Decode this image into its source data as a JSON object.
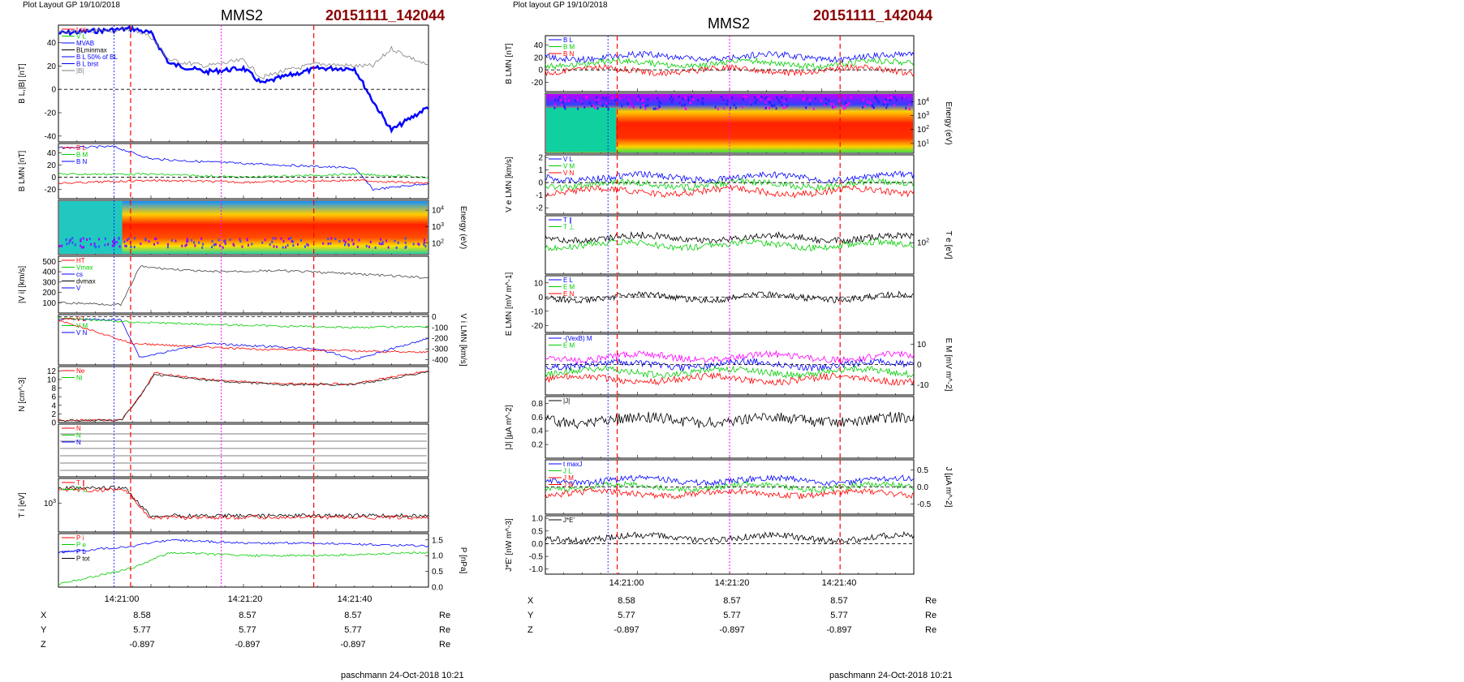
{
  "left": {
    "header": "Plot Layout GP 19/10/2018",
    "spacecraft": "MMS2",
    "event_id": "20151111_142044",
    "footer": "paschmann 24-Oct-2018 10:21",
    "time_labels": [
      "14:21:00",
      "14:21:20",
      "14:21:40"
    ],
    "ephemeris": [
      {
        "coord": "X",
        "values": [
          "8.58",
          "8.57",
          "8.57"
        ],
        "unit": "Re"
      },
      {
        "coord": "Y",
        "values": [
          "5.77",
          "5.77",
          "5.77"
        ],
        "unit": "Re"
      },
      {
        "coord": "Z",
        "values": [
          "-0.897",
          "-0.897",
          "-0.897"
        ],
        "unit": "Re"
      }
    ]
  },
  "right": {
    "header": "Plot layout GP 19/10/2018",
    "spacecraft": "MMS2",
    "event_id": "20151111_142044",
    "footer": "paschmann 24-Oct-2018 10:21",
    "time_labels": [
      "14:21:00",
      "14:21:20",
      "14:21:40"
    ],
    "ephemeris": [
      {
        "coord": "X",
        "values": [
          "8.58",
          "8.57",
          "8.57"
        ],
        "unit": "Re"
      },
      {
        "coord": "Y",
        "values": [
          "5.77",
          "5.77",
          "5.77"
        ],
        "unit": "Re"
      },
      {
        "coord": "Z",
        "values": [
          "-0.897",
          "-0.897",
          "-0.897"
        ],
        "unit": "Re"
      }
    ]
  },
  "colors": {
    "event": "#8b0000",
    "blue": "#0000ff",
    "red": "#ff0000",
    "green": "#00cc00",
    "magenta": "#ff00ff",
    "gray": "#808080",
    "cyan": "#00bfff"
  },
  "chart_data": [
    {
      "type": "line",
      "panel": "left-1",
      "ylabel": "B_L,|B| [nT]",
      "ylim": [
        -45,
        55
      ],
      "yticks": [
        "40",
        "20",
        "0",
        "-20",
        "-40"
      ],
      "legend": [
        "t_cs",
        "V_L",
        "MVAB",
        "BLminmax",
        "B_L 50% of BL",
        "B_L brst",
        "|B|"
      ],
      "series": [
        {
          "name": "B_L",
          "x": [
            0,
            10,
            20,
            25,
            30,
            40,
            50,
            55,
            60,
            70,
            80,
            85,
            90,
            100
          ],
          "y": [
            48,
            50,
            52,
            48,
            22,
            15,
            18,
            5,
            10,
            18,
            18,
            -10,
            -35,
            -15
          ]
        },
        {
          "name": "|B|",
          "x": [
            0,
            10,
            20,
            25,
            30,
            40,
            50,
            55,
            60,
            70,
            80,
            85,
            90,
            100
          ],
          "y": [
            48,
            50,
            52,
            45,
            25,
            20,
            25,
            10,
            15,
            22,
            20,
            20,
            35,
            20
          ]
        }
      ]
    },
    {
      "type": "line",
      "panel": "left-2",
      "ylabel": "B_LMN [nT]",
      "ylim": [
        -35,
        55
      ],
      "yticks": [
        "40",
        "20",
        "0",
        "-20"
      ],
      "legend": [
        "B_L",
        "B_M",
        "B_N"
      ],
      "series": [
        {
          "name": "B_L",
          "x": [
            0,
            15,
            25,
            40,
            60,
            80,
            85,
            100
          ],
          "y": [
            48,
            50,
            30,
            25,
            20,
            15,
            -20,
            -10
          ]
        },
        {
          "name": "B_M",
          "x": [
            0,
            25,
            50,
            80,
            100
          ],
          "y": [
            5,
            5,
            0,
            5,
            0
          ]
        },
        {
          "name": "B_N",
          "x": [
            0,
            25,
            50,
            80,
            100
          ],
          "y": [
            -10,
            -5,
            -8,
            -5,
            -10
          ]
        }
      ]
    },
    {
      "type": "heatmap",
      "panel": "left-3",
      "ylabel": "Energy (eV)",
      "yticks": [
        "10^4",
        "10^3",
        "10^2"
      ]
    },
    {
      "type": "line",
      "panel": "left-4",
      "ylabel": "|V_i| [km/s]",
      "ylim": [
        0,
        550
      ],
      "yticks": [
        "500",
        "400",
        "300",
        "200",
        "100"
      ],
      "legend": [
        "HT",
        "Vmax",
        "cs",
        "dvmax",
        "V"
      ],
      "series": [
        {
          "name": "|V_i|",
          "x": [
            0,
            10,
            17,
            22,
            25,
            40,
            60,
            80,
            100
          ],
          "y": [
            100,
            90,
            80,
            450,
            440,
            400,
            410,
            380,
            340
          ]
        }
      ]
    },
    {
      "type": "line",
      "panel": "left-5",
      "ylabel": "V_i LMN [km/s]",
      "ylim": [
        -450,
        20
      ],
      "yticks": [
        "0",
        "-100",
        "-200",
        "-300",
        "-400"
      ],
      "legend": [
        "V_L",
        "V_M",
        "V_N"
      ],
      "series": [
        {
          "name": "V_L",
          "x": [
            0,
            17,
            22,
            40,
            70,
            80,
            100
          ],
          "y": [
            -20,
            -30,
            -380,
            -250,
            -300,
            -400,
            -200
          ]
        },
        {
          "name": "V_M",
          "x": [
            0,
            20,
            50,
            80,
            100
          ],
          "y": [
            -10,
            -50,
            -80,
            -100,
            -90
          ]
        },
        {
          "name": "V_N",
          "x": [
            0,
            20,
            50,
            80,
            100
          ],
          "y": [
            -30,
            -250,
            -300,
            -320,
            -330
          ]
        }
      ]
    },
    {
      "type": "line",
      "panel": "left-6",
      "ylabel": "N [cm^-3]",
      "ylim": [
        0,
        13
      ],
      "yticks": [
        "12",
        "10",
        "8",
        "6",
        "4",
        "2",
        "0"
      ],
      "legend": [
        "Ne",
        "Ni"
      ],
      "series": [
        {
          "name": "Ne",
          "x": [
            0,
            17,
            22,
            26,
            40,
            60,
            80,
            100
          ],
          "y": [
            0.5,
            0.5,
            6,
            11.5,
            10,
            9,
            9,
            12
          ]
        },
        {
          "name": "Ni",
          "x": [
            0,
            17,
            22,
            26,
            40,
            60,
            80,
            100
          ],
          "y": [
            0.5,
            0.5,
            6,
            11.2,
            9.8,
            8.8,
            8.8,
            11.8
          ]
        }
      ]
    },
    {
      "type": "line",
      "panel": "left-7",
      "legend": [
        "N",
        "N",
        "N"
      ]
    },
    {
      "type": "line",
      "panel": "left-8",
      "ylabel": "T_i [eV]",
      "yticks": [
        "10^3"
      ],
      "legend": [
        "T_∥",
        "T_⊥"
      ]
    },
    {
      "type": "line",
      "panel": "left-9",
      "ylabel": "P [nPa]",
      "ylim": [
        0,
        1.7
      ],
      "yticks": [
        "1.5",
        "1.0",
        "0.5",
        "0.0"
      ],
      "legend": [
        "P_i",
        "P_e",
        "P_b",
        "P_tot"
      ],
      "series": [
        {
          "name": "P_tot",
          "x": [
            0,
            20,
            30,
            50,
            70,
            100
          ],
          "y": [
            1.1,
            1.3,
            1.5,
            1.4,
            1.4,
            1.3
          ]
        },
        {
          "name": "P_i",
          "x": [
            0,
            20,
            30,
            50,
            70,
            100
          ],
          "y": [
            0.1,
            0.6,
            1.1,
            1.0,
            1.0,
            1.1
          ]
        }
      ]
    },
    {
      "type": "line",
      "panel": "right-1",
      "ylabel": "B_LMN [nT]",
      "ylim": [
        -35,
        55
      ],
      "yticks": [
        "40",
        "20",
        "0",
        "-20"
      ],
      "legend": [
        "B_L",
        "B_M",
        "B_N"
      ]
    },
    {
      "type": "heatmap",
      "panel": "right-2",
      "ylabel": "Energy (eV)",
      "yticks": [
        "10^4",
        "10^3",
        "10^2",
        "10^1"
      ]
    },
    {
      "type": "line",
      "panel": "right-3",
      "ylabel": "V_e LMN [km/s]",
      "ylim": [
        -2.5,
        2.2
      ],
      "yticks": [
        "2",
        "1",
        "0",
        "-1",
        "-2"
      ],
      "legend": [
        "V_L",
        "V_M",
        "V_N"
      ]
    },
    {
      "type": "line",
      "panel": "right-4",
      "ylabel": "T_e [eV]",
      "yticks": [
        "10^2"
      ],
      "legend": [
        "T_∥",
        "T_⊥"
      ]
    },
    {
      "type": "line",
      "panel": "right-5",
      "ylabel": "E_LMN [mV m^-1]",
      "ylim": [
        -25,
        15
      ],
      "yticks": [
        "10",
        "0",
        "-10",
        "-20"
      ],
      "legend": [
        "E_L",
        "E_M",
        "E_N"
      ]
    },
    {
      "type": "line",
      "panel": "right-6",
      "ylabel": "E_M [mV m^-2]",
      "ylim": [
        -15,
        15
      ],
      "yticks": [
        "10",
        "0",
        "-10"
      ],
      "legend": [
        "-(VexB)_M",
        "E_M"
      ]
    },
    {
      "type": "line",
      "panel": "right-7",
      "ylabel": "|J| [µA m^-2]",
      "ylim": [
        0,
        0.9
      ],
      "yticks": [
        "0.8",
        "0.6",
        "0.4",
        "0.2"
      ],
      "legend": [
        "|J|"
      ]
    },
    {
      "type": "line",
      "panel": "right-8",
      "ylabel": "J [µA m^-2]",
      "ylim": [
        -0.8,
        0.8
      ],
      "yticks": [
        "0.5",
        "0.0",
        "-0.5"
      ],
      "legend": [
        "t_maxJ",
        "J_L",
        "J_M",
        "J_N"
      ]
    },
    {
      "type": "line",
      "panel": "right-9",
      "ylabel": "J*E' [nW m^-3]",
      "ylim": [
        -1.2,
        1.1
      ],
      "yticks": [
        "1.0",
        "0.5",
        "0.0",
        "-0.5",
        "-1.0"
      ],
      "legend": [
        "J*E'"
      ]
    }
  ]
}
